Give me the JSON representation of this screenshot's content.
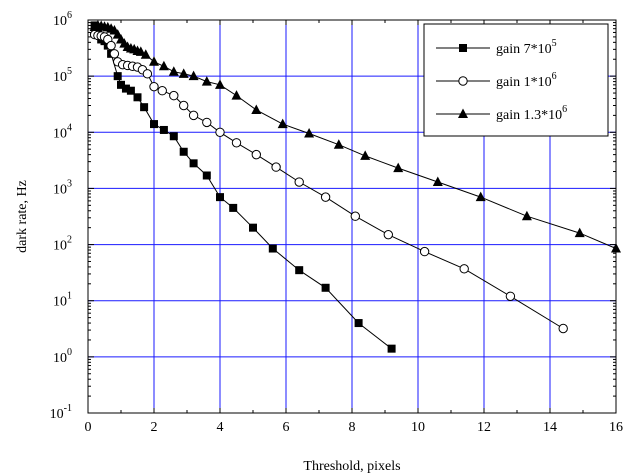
{
  "chart_data": {
    "type": "scatter",
    "title": "",
    "xlabel": "Threshold, pixels",
    "ylabel": "dark rate, Hz",
    "xlim": [
      0,
      16
    ],
    "ylim": [
      0.1,
      1000000
    ],
    "yscale": "log",
    "grid": true,
    "grid_color": "#1a1aff",
    "legend_position": "top-right",
    "x_ticks": [
      {
        "value": 0,
        "label": "0"
      },
      {
        "value": 2,
        "label": "2"
      },
      {
        "value": 4,
        "label": "4"
      },
      {
        "value": 6,
        "label": "6"
      },
      {
        "value": 8,
        "label": "8"
      },
      {
        "value": 10,
        "label": "10"
      },
      {
        "value": 12,
        "label": "12"
      },
      {
        "value": 14,
        "label": "14"
      },
      {
        "value": 16,
        "label": "16"
      }
    ],
    "y_ticks": [
      {
        "value": 1000000,
        "base": "10",
        "exp": "6"
      },
      {
        "value": 100000,
        "base": "10",
        "exp": "5"
      },
      {
        "value": 10000,
        "base": "10",
        "exp": "4"
      },
      {
        "value": 1000,
        "base": "10",
        "exp": "3"
      },
      {
        "value": 100,
        "base": "10",
        "exp": "2"
      },
      {
        "value": 10,
        "base": "10",
        "exp": "1"
      },
      {
        "value": 1,
        "base": "10",
        "exp": "0"
      },
      {
        "value": 0.1,
        "base": "10",
        "exp": "-1"
      }
    ],
    "series": [
      {
        "name": "gain 7*10",
        "name_exp": "5",
        "marker": "square",
        "points": [
          [
            0.2,
            800000
          ],
          [
            0.3,
            700000
          ],
          [
            0.4,
            450000
          ],
          [
            0.5,
            420000
          ],
          [
            0.6,
            350000
          ],
          [
            0.7,
            250000
          ],
          [
            0.9,
            100000
          ],
          [
            1.0,
            70000
          ],
          [
            1.15,
            60000
          ],
          [
            1.3,
            55000
          ],
          [
            1.5,
            42000
          ],
          [
            1.7,
            28000
          ],
          [
            2.0,
            14000
          ],
          [
            2.3,
            11000
          ],
          [
            2.6,
            8500
          ],
          [
            2.9,
            4500
          ],
          [
            3.2,
            2800
          ],
          [
            3.6,
            1700
          ],
          [
            4.0,
            700
          ],
          [
            4.4,
            450
          ],
          [
            5.0,
            200
          ],
          [
            5.6,
            85
          ],
          [
            6.4,
            35
          ],
          [
            7.2,
            17
          ],
          [
            8.2,
            4
          ],
          [
            9.2,
            1.4
          ]
        ]
      },
      {
        "name": "gain 1*10",
        "name_exp": "6",
        "marker": "circle",
        "points": [
          [
            0.2,
            550000
          ],
          [
            0.3,
            530000
          ],
          [
            0.4,
            520000
          ],
          [
            0.5,
            500000
          ],
          [
            0.6,
            450000
          ],
          [
            0.7,
            350000
          ],
          [
            0.8,
            250000
          ],
          [
            0.9,
            180000
          ],
          [
            1.05,
            160000
          ],
          [
            1.2,
            155000
          ],
          [
            1.35,
            150000
          ],
          [
            1.5,
            145000
          ],
          [
            1.65,
            130000
          ],
          [
            1.8,
            110000
          ],
          [
            2.0,
            65000
          ],
          [
            2.25,
            55000
          ],
          [
            2.6,
            45000
          ],
          [
            2.9,
            30000
          ],
          [
            3.2,
            20000
          ],
          [
            3.6,
            15000
          ],
          [
            4.0,
            10000
          ],
          [
            4.5,
            6500
          ],
          [
            5.1,
            4000
          ],
          [
            5.7,
            2400
          ],
          [
            6.4,
            1300
          ],
          [
            7.2,
            700
          ],
          [
            8.1,
            320
          ],
          [
            9.1,
            150
          ],
          [
            10.2,
            75
          ],
          [
            11.4,
            37
          ],
          [
            12.8,
            12
          ],
          [
            14.4,
            3.2
          ]
        ]
      },
      {
        "name": "gain 1.3*10",
        "name_exp": "6",
        "marker": "triangle",
        "points": [
          [
            0.2,
            750000
          ],
          [
            0.3,
            800000
          ],
          [
            0.4,
            780000
          ],
          [
            0.5,
            760000
          ],
          [
            0.6,
            740000
          ],
          [
            0.7,
            700000
          ],
          [
            0.8,
            650000
          ],
          [
            0.9,
            550000
          ],
          [
            1.0,
            450000
          ],
          [
            1.1,
            380000
          ],
          [
            1.2,
            330000
          ],
          [
            1.3,
            310000
          ],
          [
            1.4,
            300000
          ],
          [
            1.5,
            280000
          ],
          [
            1.6,
            270000
          ],
          [
            1.75,
            240000
          ],
          [
            2.0,
            180000
          ],
          [
            2.3,
            150000
          ],
          [
            2.6,
            120000
          ],
          [
            2.9,
            110000
          ],
          [
            3.2,
            100000
          ],
          [
            3.6,
            80000
          ],
          [
            4.0,
            70000
          ],
          [
            4.5,
            45000
          ],
          [
            5.1,
            25000
          ],
          [
            5.9,
            14000
          ],
          [
            6.7,
            9500
          ],
          [
            7.6,
            6000
          ],
          [
            8.4,
            3800
          ],
          [
            9.4,
            2300
          ],
          [
            10.6,
            1300
          ],
          [
            11.9,
            700
          ],
          [
            13.3,
            320
          ],
          [
            14.9,
            160
          ],
          [
            16.0,
            85
          ]
        ]
      }
    ]
  }
}
